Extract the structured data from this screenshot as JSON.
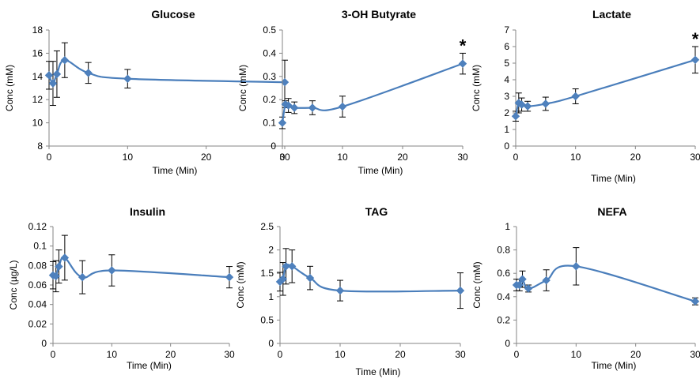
{
  "colors": {
    "series": "#4a7ebb",
    "marker": "#4f81bd",
    "axis": "#868686",
    "error_bar": "#000000"
  },
  "chart_data": [
    {
      "type": "line",
      "title": "Glucose",
      "xlabel": "Time (Min)",
      "ylabel": "Conc (mM)",
      "xlim": [
        0,
        30
      ],
      "ylim": [
        8,
        18
      ],
      "xticks": [
        0,
        10,
        20,
        30
      ],
      "yticks": [
        8,
        10,
        12,
        14,
        16,
        18
      ],
      "x": [
        0,
        0.5,
        1,
        2,
        5,
        10,
        30
      ],
      "y": [
        14.1,
        13.4,
        14.2,
        15.4,
        14.3,
        13.8,
        13.5
      ],
      "error": [
        1.2,
        1.9,
        2.0,
        1.5,
        0.9,
        0.8,
        1.9
      ],
      "significant": []
    },
    {
      "type": "line",
      "title": "3-OH Butyrate",
      "xlabel": "Time (Min)",
      "ylabel": "Conc (mM)",
      "xlim": [
        0,
        30
      ],
      "ylim": [
        0,
        0.5
      ],
      "xticks": [
        0,
        10,
        20,
        30
      ],
      "yticks": [
        0,
        0.1,
        0.2,
        0.3,
        0.4,
        0.5
      ],
      "x": [
        0,
        0.5,
        1,
        2,
        5,
        10,
        30
      ],
      "y": [
        0.1,
        0.18,
        0.175,
        0.165,
        0.165,
        0.17,
        0.355
      ],
      "error": [
        0.025,
        0.015,
        0.03,
        0.025,
        0.03,
        0.045,
        0.045
      ],
      "significant": [
        30
      ]
    },
    {
      "type": "line",
      "title": "Lactate",
      "xlabel": "Time (Min)",
      "ylabel": "Conc (mM)",
      "xlim": [
        0,
        30
      ],
      "ylim": [
        0,
        7
      ],
      "xticks": [
        0,
        10,
        20,
        30
      ],
      "yticks": [
        0,
        1,
        2,
        3,
        4,
        5,
        6,
        7
      ],
      "x": [
        0,
        0.5,
        1,
        2,
        5,
        10,
        30
      ],
      "y": [
        1.8,
        2.6,
        2.5,
        2.4,
        2.55,
        3.0,
        5.2
      ],
      "error": [
        0.3,
        0.6,
        0.4,
        0.3,
        0.4,
        0.45,
        0.8
      ],
      "significant": [
        30
      ]
    },
    {
      "type": "line",
      "title": "Insulin",
      "xlabel": "Time (Min)",
      "ylabel": "Conc (µg/L)",
      "xlim": [
        0,
        30
      ],
      "ylim": [
        0,
        0.12
      ],
      "xticks": [
        0,
        10,
        20,
        30
      ],
      "yticks": [
        0,
        0.02,
        0.04,
        0.06,
        0.08,
        0.1,
        0.12
      ],
      "x": [
        0,
        0.5,
        1,
        2,
        5,
        10,
        30
      ],
      "y": [
        0.07,
        0.069,
        0.079,
        0.088,
        0.068,
        0.075,
        0.068
      ],
      "error": [
        0.014,
        0.016,
        0.017,
        0.023,
        0.017,
        0.016,
        0.011
      ],
      "significant": []
    },
    {
      "type": "line",
      "title": "TAG",
      "xlabel": "Time (Min)",
      "ylabel": "Conc (mM)",
      "xlim": [
        0,
        30
      ],
      "ylim": [
        0,
        2.5
      ],
      "xticks": [
        0,
        10,
        20,
        30
      ],
      "yticks": [
        0,
        0.5,
        1,
        1.5,
        2,
        2.5
      ],
      "x": [
        0,
        0.5,
        1,
        2,
        5,
        10,
        30
      ],
      "y": [
        1.32,
        1.38,
        1.65,
        1.65,
        1.4,
        1.13,
        1.13
      ],
      "error": [
        0.2,
        0.35,
        0.38,
        0.35,
        0.25,
        0.22,
        0.38
      ],
      "significant": []
    },
    {
      "type": "line",
      "title": "NEFA",
      "xlabel": "Time (Min)",
      "ylabel": "Conc (mM)",
      "xlim": [
        0,
        30
      ],
      "ylim": [
        0,
        1
      ],
      "xticks": [
        0,
        10,
        20,
        30
      ],
      "yticks": [
        0,
        0.2,
        0.4,
        0.6,
        0.8,
        1
      ],
      "x": [
        0,
        0.5,
        1,
        2,
        5,
        10,
        30
      ],
      "y": [
        0.5,
        0.5,
        0.55,
        0.47,
        0.54,
        0.66,
        0.36
      ],
      "error": [
        0.05,
        0.05,
        0.07,
        0.03,
        0.09,
        0.16,
        0.03
      ],
      "significant": []
    }
  ]
}
